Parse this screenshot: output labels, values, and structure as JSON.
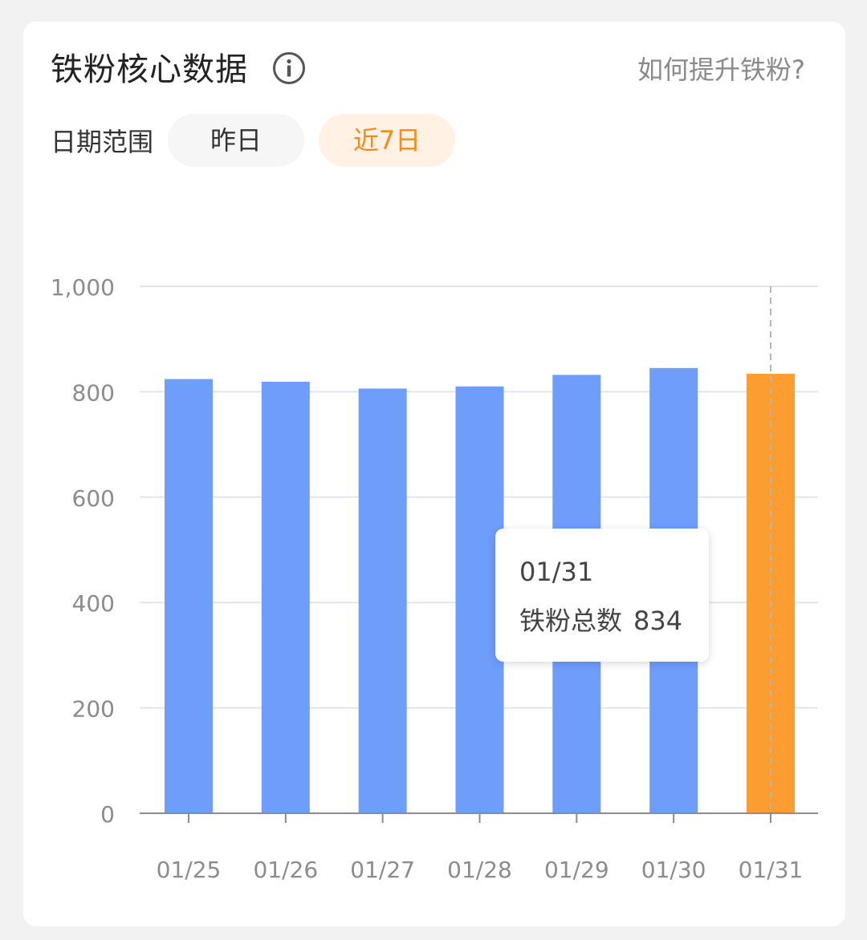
{
  "header": {
    "title": "铁粉核心数据",
    "help_link": "如何提升铁粉?"
  },
  "filters": {
    "label": "日期范围",
    "options": [
      {
        "label": "昨日",
        "selected": false
      },
      {
        "label": "近7日",
        "selected": true
      }
    ]
  },
  "colors": {
    "bar": "#6e9dfb",
    "bar_highlight": "#fb9d31",
    "active_chip_text": "#f08c1c",
    "active_chip_bg": "#fff2e5"
  },
  "icons": {
    "info": "info-circle-icon"
  },
  "tooltip": {
    "date": "01/31",
    "series_label": "铁粉总数",
    "value": "834"
  },
  "chart_data": {
    "type": "bar",
    "categories": [
      "01/25",
      "01/26",
      "01/27",
      "01/28",
      "01/29",
      "01/30",
      "01/31"
    ],
    "values": [
      824,
      819,
      806,
      810,
      832,
      845,
      834
    ],
    "highlighted_index": 6,
    "series_name": "铁粉总数",
    "ylim": [
      0,
      1000
    ],
    "yticks": [
      0,
      200,
      400,
      600,
      800,
      1000
    ],
    "ytick_labels": [
      "0",
      "200",
      "400",
      "600",
      "800",
      "1,000"
    ],
    "grid": true
  }
}
